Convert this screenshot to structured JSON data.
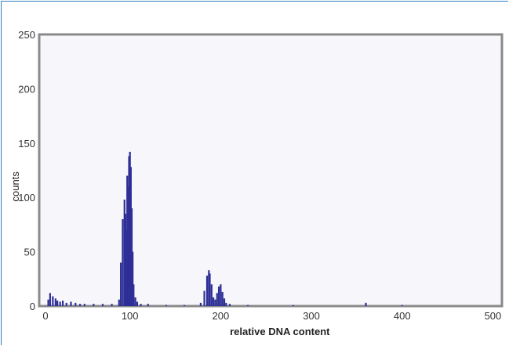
{
  "chart_data": {
    "type": "bar",
    "title": "",
    "xlabel": "relative DNA content",
    "ylabel": "counts",
    "xlim": [
      0,
      510
    ],
    "ylim": [
      0,
      250
    ],
    "x_ticks": [
      0,
      100,
      200,
      300,
      400,
      500
    ],
    "y_ticks": [
      0,
      50,
      100,
      150,
      200,
      250
    ],
    "x_tick_labels": [
      "0",
      "100",
      "200",
      "300",
      "400",
      "500"
    ],
    "y_tick_labels": [
      "0",
      "50",
      "100",
      "150",
      "200",
      "250"
    ],
    "grid": false,
    "legend": "none",
    "series": [
      {
        "color": "#2e2f96",
        "x": [
          10,
          12,
          15,
          18,
          20,
          23,
          26,
          30,
          35,
          40,
          45,
          50,
          60,
          70,
          80,
          88,
          90,
          92,
          94,
          95,
          96,
          97,
          98,
          99,
          100,
          101,
          102,
          103,
          104,
          106,
          108,
          112,
          120,
          140,
          160,
          178,
          182,
          185,
          187,
          188,
          190,
          192,
          194,
          196,
          198,
          200,
          202,
          204,
          206,
          210,
          230,
          280,
          360,
          400
        ],
        "values": [
          6,
          12,
          9,
          7,
          5,
          4,
          5,
          3,
          4,
          3,
          2,
          2,
          2,
          2,
          2,
          6,
          40,
          80,
          98,
          85,
          70,
          120,
          110,
          138,
          142,
          128,
          90,
          50,
          20,
          8,
          4,
          2,
          2,
          1,
          1,
          3,
          14,
          28,
          33,
          30,
          20,
          8,
          6,
          12,
          18,
          20,
          13,
          7,
          3,
          2,
          1,
          1,
          3,
          1
        ]
      }
    ],
    "colors": {
      "plot_border": "#8a8a8a",
      "plot_background": "#f7f7fb",
      "frame": "#2f7fc1"
    }
  }
}
